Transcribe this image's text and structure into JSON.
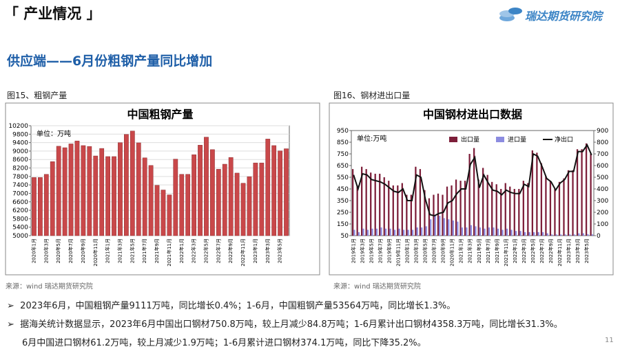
{
  "header": {
    "title": "「 产业情况 」",
    "logo": "瑞达期货研究院"
  },
  "subtitle": "供应端——6月份粗钢产量同比增加",
  "figures": [
    {
      "caption": "图15、粗钢产量",
      "source": "来源：wind   瑞达期货研究院"
    },
    {
      "caption": "图16、钢材进出口量",
      "source": "来源：wind   瑞达期货研究院"
    }
  ],
  "chart_data": [
    {
      "type": "bar",
      "title": "中国粗钢产量",
      "unit": "单位：万吨",
      "color": "#c9484a",
      "grid": true,
      "categories": [
        "2020年1月",
        null,
        "2020年3月",
        null,
        "2020年5月",
        null,
        "2020年7月",
        null,
        "2020年9月",
        null,
        "2020年11月",
        null,
        "2021年1月",
        null,
        "2021年3月",
        null,
        "2021年5月",
        null,
        "2021年7月",
        null,
        "2021年9月",
        null,
        "2021年11月",
        null,
        "2022年1月",
        null,
        "2022年3月",
        null,
        "2022年5月",
        null,
        "2022年7月",
        null,
        "2022年9月",
        null,
        "2022年11月",
        null,
        "2023年1月",
        null,
        "2023年3月",
        null,
        "2023年5月",
        null
      ],
      "values": [
        7750,
        7750,
        7900,
        8500,
        9230,
        9160,
        9340,
        9480,
        9260,
        9220,
        8770,
        9125,
        8740,
        8740,
        9400,
        9790,
        9950,
        9390,
        8680,
        8320,
        7380,
        7160,
        6930,
        8620,
        7900,
        7900,
        8830,
        9280,
        9660,
        9070,
        8140,
        8380,
        8700,
        7960,
        7480,
        7790,
        8440,
        8440,
        9570,
        9260,
        9010,
        9111
      ],
      "ylim": [
        5000,
        10200
      ],
      "yticks": [
        5000,
        5400,
        5800,
        6200,
        6600,
        7000,
        7400,
        7800,
        8200,
        8600,
        9000,
        9400,
        9800,
        10200
      ]
    },
    {
      "type": "bar",
      "title": "中国钢材进出口数据",
      "unit": "单位:万吨",
      "grid": false,
      "legend": "top-right",
      "categories": [
        "2019年1月",
        null,
        "2019年3月",
        null,
        "2019年5月",
        null,
        "2019年7月",
        null,
        "2019年9月",
        null,
        "2019年11月",
        null,
        "2020年1月",
        null,
        "2020年3月",
        null,
        "2020年5月",
        null,
        "2020年7月",
        null,
        "2020年9月",
        null,
        "2020年11月",
        null,
        "2021年1月",
        null,
        "2021年3月",
        null,
        "2021年5月",
        null,
        "2021年7月",
        null,
        "2021年9月",
        null,
        "2021年11月",
        null,
        "2022年1月",
        null,
        "2022年3月",
        null,
        "2022年5月",
        null,
        "2022年7月",
        null,
        "2022年9月",
        null,
        "2022年11月",
        null,
        "2023年1月",
        null,
        "2023年3月",
        null,
        "2023年5月",
        null
      ],
      "series": [
        {
          "name": "出口量",
          "color": "#7d1f3a",
          "values": [
            620,
            480,
            640,
            620,
            590,
            580,
            580,
            550,
            520,
            480,
            480,
            500,
            400,
            400,
            640,
            620,
            440,
            370,
            400,
            410,
            400,
            470,
            480,
            530,
            520,
            520,
            750,
            800,
            530,
            630,
            570,
            510,
            490,
            450,
            500,
            470,
            450,
            450,
            520,
            500,
            780,
            760,
            670,
            560,
            520,
            450,
            510,
            540,
            610,
            610,
            790,
            790,
            840,
            751
          ]
        },
        {
          "name": "进口量",
          "color": "#8c8ce0",
          "values": [
            100,
            80,
            110,
            100,
            110,
            110,
            120,
            110,
            110,
            100,
            110,
            100,
            100,
            100,
            120,
            120,
            130,
            190,
            230,
            220,
            200,
            190,
            180,
            170,
            120,
            120,
            140,
            130,
            120,
            110,
            120,
            120,
            110,
            100,
            110,
            100,
            90,
            90,
            80,
            80,
            80,
            80,
            80,
            70,
            60,
            60,
            60,
            60,
            60,
            60,
            70,
            70,
            63,
            61
          ]
        },
        {
          "name": "净出口",
          "color": "#111111",
          "type": "line",
          "axis": "y2",
          "values": [
            520,
            400,
            530,
            520,
            480,
            470,
            460,
            440,
            410,
            380,
            370,
            400,
            300,
            300,
            520,
            500,
            310,
            180,
            170,
            190,
            200,
            280,
            300,
            360,
            400,
            400,
            610,
            670,
            410,
            520,
            450,
            390,
            380,
            350,
            390,
            370,
            360,
            360,
            440,
            420,
            700,
            680,
            590,
            490,
            460,
            390,
            450,
            480,
            550,
            550,
            720,
            720,
            777,
            690
          ]
        }
      ],
      "ylim": [
        50,
        950
      ],
      "yticks": [
        50,
        150,
        250,
        350,
        450,
        550,
        650,
        750,
        850,
        950
      ],
      "y2lim": [
        0,
        900
      ],
      "y2ticks": [
        0,
        100,
        200,
        300,
        400,
        500,
        600,
        700,
        800,
        900
      ]
    }
  ],
  "bullets": [
    "2023年6月，中国粗钢产量9111万吨，同比增长0.4%；1-6月，中国粗钢产量53564万吨，同比增长1.3%。",
    "据海关统计数据显示，2023年6月中国出口钢材750.8万吨，较上月减少84.8万吨；1-6月累计出口钢材4358.3万吨，同比增长31.3%。",
    "6月中国进口钢材61.2万吨，较上月减少1.9万吨；1-6月累计进口钢材374.1万吨，同比下降35.2%。"
  ],
  "page_number": "11"
}
